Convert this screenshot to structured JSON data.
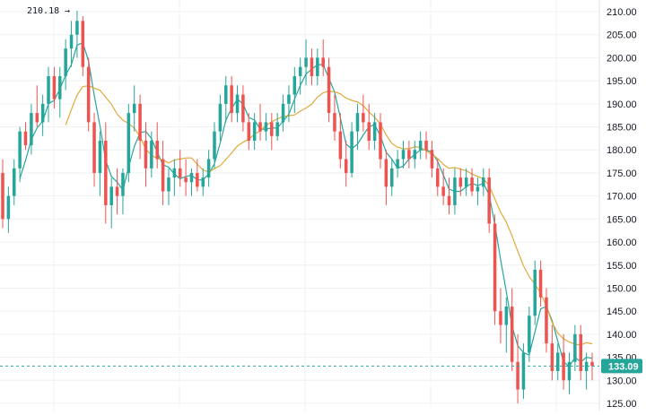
{
  "chart_data": {
    "type": "candlestick",
    "y_axis": {
      "ticks": [
        "125.00",
        "130.00",
        "135.00",
        "140.00",
        "145.00",
        "150.00",
        "155.00",
        "160.00",
        "165.00",
        "170.00",
        "175.00",
        "180.00",
        "185.00",
        "190.00",
        "195.00",
        "200.00",
        "205.00",
        "210.00"
      ],
      "ylim": [
        124,
        212
      ],
      "position": "right"
    },
    "grid": true,
    "high_marker": {
      "label": "210.18",
      "value": 210.18
    },
    "last_price": {
      "label": "133.09",
      "value": 133.09
    },
    "colors": {
      "up": "#26a69a",
      "down": "#ef5350",
      "ma_fast": "#26a69a",
      "ma_slow": "#e0a93b",
      "last_price": "#26a69a",
      "grid": "#eef0f3"
    },
    "candles": [
      [
        175,
        178,
        163,
        165
      ],
      [
        165,
        172,
        162,
        170
      ],
      [
        170,
        178,
        168,
        176
      ],
      [
        176,
        185,
        173,
        184
      ],
      [
        184,
        186,
        180,
        181
      ],
      [
        181,
        190,
        179,
        188
      ],
      [
        188,
        194,
        185,
        186
      ],
      [
        186,
        192,
        183,
        190
      ],
      [
        190,
        198,
        186,
        196
      ],
      [
        196,
        198,
        189,
        191
      ],
      [
        191,
        198,
        187,
        196
      ],
      [
        196,
        204,
        193,
        202
      ],
      [
        202,
        208,
        198,
        205
      ],
      [
        205,
        210.18,
        200,
        208
      ],
      [
        208,
        209,
        196,
        198
      ],
      [
        198,
        200,
        184,
        186
      ],
      [
        186,
        188,
        172,
        175
      ],
      [
        175,
        184,
        170,
        182
      ],
      [
        182,
        186,
        164,
        168
      ],
      [
        168,
        174,
        163,
        172
      ],
      [
        172,
        176,
        166,
        170
      ],
      [
        170,
        176,
        166,
        175
      ],
      [
        175,
        190,
        173,
        188
      ],
      [
        188,
        194,
        184,
        190
      ],
      [
        190,
        192,
        178,
        182
      ],
      [
        182,
        186,
        172,
        176
      ],
      [
        176,
        184,
        174,
        182
      ],
      [
        182,
        186,
        176,
        178
      ],
      [
        178,
        182,
        168,
        171
      ],
      [
        171,
        176,
        168,
        174
      ],
      [
        174,
        178,
        170,
        176
      ],
      [
        176,
        180,
        172,
        174
      ],
      [
        174,
        178,
        170,
        173
      ],
      [
        173,
        176,
        170,
        175
      ],
      [
        175,
        178,
        171,
        172
      ],
      [
        172,
        176,
        170,
        174
      ],
      [
        174,
        180,
        172,
        178
      ],
      [
        178,
        186,
        176,
        184
      ],
      [
        184,
        192,
        182,
        190
      ],
      [
        190,
        196,
        186,
        194
      ],
      [
        194,
        196,
        186,
        188
      ],
      [
        188,
        194,
        186,
        192
      ],
      [
        192,
        194,
        184,
        186
      ],
      [
        186,
        188,
        180,
        182
      ],
      [
        182,
        188,
        180,
        186
      ],
      [
        186,
        190,
        182,
        184
      ],
      [
        184,
        188,
        182,
        186
      ],
      [
        186,
        188,
        180,
        183
      ],
      [
        183,
        188,
        182,
        186
      ],
      [
        186,
        192,
        184,
        190
      ],
      [
        190,
        194,
        186,
        192
      ],
      [
        192,
        198,
        188,
        196
      ],
      [
        196,
        200,
        192,
        198
      ],
      [
        198,
        204,
        194,
        200
      ],
      [
        200,
        202,
        194,
        196
      ],
      [
        196,
        202,
        194,
        200
      ],
      [
        200,
        204,
        196,
        198
      ],
      [
        198,
        200,
        186,
        188
      ],
      [
        188,
        192,
        182,
        184
      ],
      [
        184,
        188,
        176,
        178
      ],
      [
        178,
        182,
        172,
        175
      ],
      [
        175,
        186,
        174,
        184
      ],
      [
        184,
        190,
        180,
        188
      ],
      [
        188,
        192,
        184,
        186
      ],
      [
        186,
        190,
        180,
        182
      ],
      [
        182,
        188,
        180,
        186
      ],
      [
        186,
        188,
        176,
        178
      ],
      [
        178,
        180,
        168,
        172
      ],
      [
        172,
        178,
        170,
        176
      ],
      [
        176,
        180,
        174,
        178
      ],
      [
        178,
        182,
        176,
        180
      ],
      [
        180,
        182,
        176,
        178
      ],
      [
        178,
        182,
        176,
        180
      ],
      [
        180,
        184,
        178,
        182
      ],
      [
        182,
        184,
        178,
        180
      ],
      [
        180,
        182,
        174,
        176
      ],
      [
        176,
        178,
        170,
        172
      ],
      [
        172,
        176,
        168,
        170
      ],
      [
        170,
        174,
        166,
        168
      ],
      [
        168,
        176,
        166,
        174
      ],
      [
        174,
        176,
        170,
        172
      ],
      [
        172,
        176,
        170,
        174
      ],
      [
        174,
        176,
        170,
        171
      ],
      [
        171,
        174,
        168,
        172
      ],
      [
        172,
        176,
        170,
        174
      ],
      [
        174,
        176,
        162,
        164
      ],
      [
        164,
        166,
        142,
        145
      ],
      [
        145,
        150,
        138,
        142
      ],
      [
        142,
        148,
        136,
        146
      ],
      [
        146,
        150,
        132,
        134
      ],
      [
        134,
        140,
        125,
        128
      ],
      [
        128,
        138,
        126,
        136
      ],
      [
        136,
        146,
        134,
        144
      ],
      [
        144,
        156,
        142,
        154
      ],
      [
        154,
        156,
        146,
        148
      ],
      [
        148,
        150,
        136,
        138
      ],
      [
        138,
        142,
        130,
        132
      ],
      [
        132,
        138,
        130,
        136
      ],
      [
        136,
        140,
        128,
        130
      ],
      [
        130,
        136,
        127,
        134
      ],
      [
        134,
        142,
        132,
        140
      ],
      [
        140,
        142,
        130,
        132
      ],
      [
        132,
        136,
        128,
        134
      ],
      [
        134,
        136,
        130,
        133.09
      ]
    ]
  }
}
